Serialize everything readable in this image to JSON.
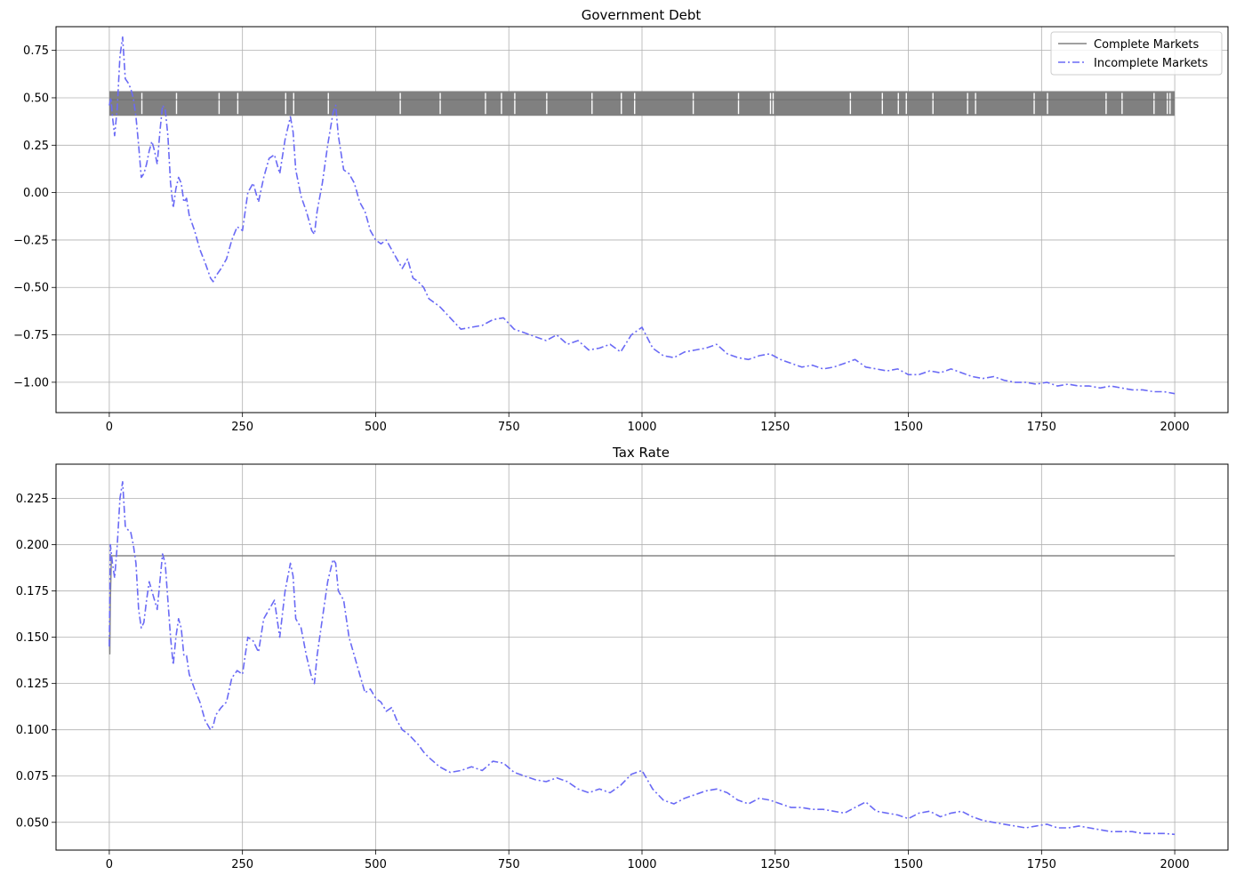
{
  "chart_data": [
    {
      "type": "line",
      "title": "Government Debt",
      "xlabel": "",
      "ylabel": "",
      "xlim": [
        -100,
        2100
      ],
      "ylim": [
        -1.16,
        0.875
      ],
      "xticks": [
        0,
        250,
        500,
        750,
        1000,
        1250,
        1500,
        1750,
        2000
      ],
      "xtick_labels": [
        "0",
        "250",
        "500",
        "750",
        "1000",
        "1250",
        "1500",
        "1750",
        "2000"
      ],
      "yticks": [
        0.75,
        0.5,
        0.25,
        0.0,
        -0.25,
        -0.5,
        -0.75,
        -1.0
      ],
      "ytick_labels": [
        "0.75",
        "0.50",
        "0.25",
        "0.00",
        "−0.25",
        "−0.50",
        "−0.75",
        "−1.00"
      ],
      "grid": true,
      "legend_position": "top-right",
      "series": [
        {
          "name": "Complete Markets",
          "color": "#808080",
          "style": "solid",
          "render": "band",
          "x": [
            0,
            2000
          ],
          "y_low": 0.405,
          "y_high": 0.535,
          "mean": 0.49,
          "gap_x": [
            60,
            125,
            205,
            240,
            330,
            345,
            410,
            545,
            620,
            705,
            735,
            760,
            820,
            905,
            960,
            985,
            1095,
            1180,
            1240,
            1245,
            1390,
            1450,
            1480,
            1495,
            1545,
            1610,
            1625,
            1735,
            1760,
            1870,
            1900,
            1960,
            1985,
            1990
          ]
        },
        {
          "name": "Incomplete Markets",
          "color": "#6a6af5",
          "style": "dashdot",
          "x": [
            0,
            3,
            6,
            10,
            15,
            20,
            25,
            30,
            35,
            40,
            45,
            50,
            55,
            60,
            65,
            70,
            75,
            80,
            85,
            90,
            95,
            100,
            105,
            110,
            115,
            120,
            125,
            130,
            135,
            140,
            145,
            150,
            160,
            170,
            180,
            190,
            195,
            200,
            210,
            220,
            230,
            240,
            250,
            255,
            260,
            270,
            280,
            290,
            300,
            310,
            320,
            330,
            340,
            345,
            350,
            360,
            370,
            380,
            385,
            390,
            400,
            410,
            420,
            425,
            430,
            440,
            450,
            460,
            470,
            480,
            490,
            500,
            510,
            520,
            530,
            540,
            550,
            560,
            570,
            580,
            590,
            600,
            620,
            640,
            660,
            680,
            700,
            720,
            740,
            760,
            780,
            800,
            820,
            840,
            860,
            880,
            900,
            920,
            940,
            960,
            980,
            1000,
            1020,
            1040,
            1060,
            1080,
            1100,
            1120,
            1140,
            1160,
            1180,
            1200,
            1220,
            1240,
            1260,
            1280,
            1300,
            1320,
            1340,
            1360,
            1380,
            1400,
            1420,
            1440,
            1460,
            1480,
            1500,
            1520,
            1540,
            1560,
            1580,
            1600,
            1620,
            1640,
            1660,
            1680,
            1700,
            1720,
            1740,
            1760,
            1780,
            1800,
            1820,
            1840,
            1860,
            1880,
            1900,
            1920,
            1940,
            1960,
            1980,
            2000
          ],
          "y": [
            0.46,
            0.5,
            0.4,
            0.3,
            0.45,
            0.72,
            0.82,
            0.6,
            0.58,
            0.55,
            0.5,
            0.4,
            0.25,
            0.08,
            0.1,
            0.15,
            0.22,
            0.27,
            0.22,
            0.15,
            0.32,
            0.46,
            0.44,
            0.3,
            0.05,
            -0.08,
            0.02,
            0.08,
            0.05,
            -0.05,
            -0.03,
            -0.12,
            -0.2,
            -0.3,
            -0.37,
            -0.45,
            -0.47,
            -0.44,
            -0.4,
            -0.35,
            -0.25,
            -0.18,
            -0.2,
            -0.1,
            0.0,
            0.05,
            -0.05,
            0.08,
            0.18,
            0.2,
            0.1,
            0.28,
            0.4,
            0.32,
            0.12,
            -0.02,
            -0.1,
            -0.2,
            -0.22,
            -0.1,
            0.05,
            0.25,
            0.42,
            0.46,
            0.3,
            0.12,
            0.1,
            0.05,
            -0.05,
            -0.1,
            -0.2,
            -0.25,
            -0.27,
            -0.25,
            -0.3,
            -0.35,
            -0.4,
            -0.35,
            -0.45,
            -0.47,
            -0.5,
            -0.56,
            -0.6,
            -0.66,
            -0.72,
            -0.71,
            -0.7,
            -0.67,
            -0.66,
            -0.72,
            -0.74,
            -0.76,
            -0.78,
            -0.75,
            -0.8,
            -0.78,
            -0.83,
            -0.82,
            -0.8,
            -0.84,
            -0.75,
            -0.71,
            -0.82,
            -0.86,
            -0.87,
            -0.84,
            -0.83,
            -0.82,
            -0.8,
            -0.85,
            -0.87,
            -0.88,
            -0.86,
            -0.85,
            -0.88,
            -0.9,
            -0.92,
            -0.91,
            -0.93,
            -0.92,
            -0.9,
            -0.88,
            -0.92,
            -0.93,
            -0.94,
            -0.93,
            -0.96,
            -0.96,
            -0.94,
            -0.95,
            -0.93,
            -0.95,
            -0.97,
            -0.98,
            -0.97,
            -0.99,
            -1.0,
            -1.0,
            -1.01,
            -1.0,
            -1.02,
            -1.01,
            -1.02,
            -1.02,
            -1.03,
            -1.02,
            -1.03,
            -1.04,
            -1.04,
            -1.05,
            -1.05,
            -1.06
          ]
        }
      ]
    },
    {
      "type": "line",
      "title": "Tax Rate",
      "xlabel": "",
      "ylabel": "",
      "xlim": [
        -100,
        2100
      ],
      "ylim": [
        0.035,
        0.2435
      ],
      "xticks": [
        0,
        250,
        500,
        750,
        1000,
        1250,
        1500,
        1750,
        2000
      ],
      "xtick_labels": [
        "0",
        "250",
        "500",
        "750",
        "1000",
        "1250",
        "1500",
        "1750",
        "2000"
      ],
      "yticks": [
        0.225,
        0.2,
        0.175,
        0.15,
        0.125,
        0.1,
        0.075,
        0.05
      ],
      "ytick_labels": [
        "0.225",
        "0.200",
        "0.175",
        "0.150",
        "0.125",
        "0.100",
        "0.075",
        "0.050"
      ],
      "grid": true,
      "series": [
        {
          "name": "Complete Markets",
          "color": "#808080",
          "style": "solid",
          "x": [
            0,
            1,
            2,
            4,
            2000
          ],
          "y": [
            0.15,
            0.141,
            0.17,
            0.194,
            0.194
          ]
        },
        {
          "name": "Incomplete Markets",
          "color": "#6a6af5",
          "style": "dashdot",
          "x": [
            0,
            2,
            4,
            6,
            10,
            15,
            20,
            25,
            30,
            35,
            40,
            45,
            50,
            55,
            60,
            65,
            70,
            75,
            80,
            85,
            90,
            95,
            100,
            105,
            110,
            115,
            120,
            125,
            130,
            135,
            140,
            145,
            150,
            160,
            170,
            180,
            190,
            195,
            200,
            210,
            220,
            230,
            240,
            250,
            255,
            260,
            270,
            280,
            290,
            300,
            310,
            320,
            330,
            340,
            345,
            350,
            360,
            370,
            380,
            385,
            390,
            400,
            410,
            420,
            425,
            430,
            440,
            450,
            460,
            470,
            480,
            490,
            500,
            510,
            520,
            530,
            540,
            550,
            560,
            570,
            580,
            590,
            600,
            620,
            640,
            660,
            680,
            700,
            720,
            740,
            760,
            780,
            800,
            820,
            840,
            860,
            880,
            900,
            920,
            940,
            960,
            980,
            1000,
            1020,
            1040,
            1060,
            1080,
            1100,
            1120,
            1140,
            1160,
            1180,
            1200,
            1220,
            1240,
            1260,
            1280,
            1300,
            1320,
            1340,
            1360,
            1380,
            1400,
            1420,
            1440,
            1460,
            1480,
            1500,
            1520,
            1540,
            1560,
            1580,
            1600,
            1620,
            1640,
            1660,
            1680,
            1700,
            1720,
            1740,
            1760,
            1780,
            1800,
            1820,
            1840,
            1860,
            1880,
            1900,
            1920,
            1940,
            1960,
            1980,
            2000
          ],
          "y": [
            0.145,
            0.2,
            0.195,
            0.19,
            0.182,
            0.2,
            0.225,
            0.234,
            0.21,
            0.208,
            0.207,
            0.2,
            0.19,
            0.165,
            0.155,
            0.158,
            0.17,
            0.18,
            0.175,
            0.17,
            0.165,
            0.18,
            0.195,
            0.19,
            0.17,
            0.15,
            0.135,
            0.15,
            0.16,
            0.155,
            0.14,
            0.14,
            0.13,
            0.122,
            0.115,
            0.105,
            0.1,
            0.102,
            0.108,
            0.112,
            0.115,
            0.128,
            0.132,
            0.13,
            0.14,
            0.15,
            0.148,
            0.142,
            0.16,
            0.165,
            0.17,
            0.15,
            0.175,
            0.19,
            0.183,
            0.16,
            0.155,
            0.14,
            0.128,
            0.125,
            0.14,
            0.16,
            0.18,
            0.192,
            0.19,
            0.175,
            0.17,
            0.15,
            0.14,
            0.13,
            0.12,
            0.122,
            0.117,
            0.115,
            0.11,
            0.112,
            0.105,
            0.1,
            0.098,
            0.095,
            0.092,
            0.088,
            0.085,
            0.08,
            0.077,
            0.078,
            0.08,
            0.078,
            0.083,
            0.082,
            0.077,
            0.075,
            0.073,
            0.072,
            0.074,
            0.072,
            0.068,
            0.066,
            0.068,
            0.066,
            0.07,
            0.076,
            0.078,
            0.068,
            0.062,
            0.06,
            0.063,
            0.065,
            0.067,
            0.068,
            0.066,
            0.062,
            0.06,
            0.063,
            0.062,
            0.06,
            0.058,
            0.058,
            0.057,
            0.057,
            0.056,
            0.055,
            0.058,
            0.061,
            0.056,
            0.055,
            0.054,
            0.052,
            0.055,
            0.056,
            0.053,
            0.055,
            0.056,
            0.053,
            0.051,
            0.05,
            0.049,
            0.048,
            0.047,
            0.048,
            0.049,
            0.047,
            0.047,
            0.048,
            0.047,
            0.046,
            0.045,
            0.045,
            0.045,
            0.044,
            0.044,
            0.044,
            0.0435
          ]
        }
      ]
    }
  ]
}
